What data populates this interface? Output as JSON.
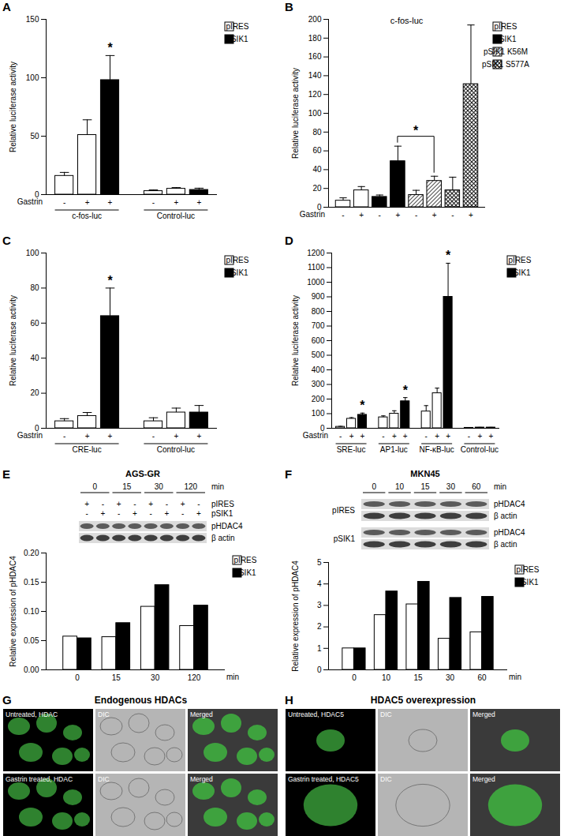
{
  "chart_data": [
    {
      "panel": "A",
      "type": "bar",
      "ylabel": "Relative luciferase activity",
      "x_row_label": "Gastrin",
      "categories": [
        "-",
        "+",
        "+",
        "-",
        "+",
        "+"
      ],
      "groups": [
        "c-fos-luc",
        "Control-luc"
      ],
      "group_of": [
        0,
        0,
        0,
        1,
        1,
        1
      ],
      "series": [
        {
          "name": "pIRES",
          "color": "#ffffff",
          "values": [
            16,
            51,
            null,
            3,
            5,
            null
          ],
          "errors": [
            3,
            13,
            null,
            1,
            1,
            null
          ]
        },
        {
          "name": "pSIK1",
          "color": "#000000",
          "values": [
            null,
            null,
            98,
            null,
            null,
            4
          ],
          "errors": [
            null,
            null,
            21,
            null,
            null,
            1.5
          ]
        }
      ],
      "ylim": [
        0,
        150
      ],
      "yticks": [
        0,
        50,
        100,
        150
      ],
      "annotations": [
        {
          "text": "*",
          "category": 2
        }
      ],
      "legend": "right"
    },
    {
      "panel": "B",
      "type": "bar",
      "title": "c-fos-luc",
      "ylabel": "Relative luciferase activity",
      "x_row_label": "Gastrin",
      "categories": [
        "-",
        "+",
        "-",
        "+",
        "-",
        "+",
        "-",
        "+"
      ],
      "series": [
        {
          "name": "pIRES",
          "color": "#ffffff",
          "values": [
            7,
            18,
            null,
            null,
            null,
            null,
            null,
            null
          ],
          "errors": [
            3,
            4,
            null,
            null,
            null,
            null,
            null,
            null
          ]
        },
        {
          "name": "pSIK1",
          "color": "#000000",
          "values": [
            null,
            null,
            11,
            49,
            null,
            null,
            null,
            null
          ],
          "errors": [
            null,
            null,
            2,
            16,
            null,
            null,
            null,
            null
          ]
        },
        {
          "name": "pSIK1 K56M",
          "color": "#555555",
          "values": [
            null,
            null,
            null,
            null,
            13,
            28,
            null,
            null
          ],
          "errors": [
            null,
            null,
            null,
            null,
            5,
            5,
            null,
            null
          ]
        },
        {
          "name": "pSIK1 S577A",
          "color": "#222222",
          "values": [
            null,
            null,
            null,
            null,
            null,
            null,
            18,
            131
          ],
          "errors": [
            null,
            null,
            null,
            null,
            null,
            null,
            14,
            63
          ]
        }
      ],
      "ylim": [
        0,
        200
      ],
      "yticks": [
        0,
        20,
        40,
        60,
        80,
        100,
        120,
        140,
        160,
        180,
        200
      ],
      "brackets": [
        {
          "text": "*",
          "from": 3,
          "to": 5
        }
      ],
      "legend": "right"
    },
    {
      "panel": "C",
      "type": "bar",
      "ylabel": "Relative luciferase activity",
      "x_row_label": "Gastrin",
      "categories": [
        "-",
        "+",
        "+",
        "-",
        "+",
        "+"
      ],
      "groups": [
        "CRE-luc",
        "Control-luc"
      ],
      "group_of": [
        0,
        0,
        0,
        1,
        1,
        1
      ],
      "series": [
        {
          "name": "pIRES",
          "color": "#ffffff",
          "values": [
            4,
            7,
            null,
            4,
            9,
            null
          ],
          "errors": [
            1.5,
            2,
            null,
            2,
            2.5,
            null
          ]
        },
        {
          "name": "pSIK1",
          "color": "#000000",
          "values": [
            null,
            null,
            64,
            null,
            null,
            9
          ],
          "errors": [
            null,
            null,
            16,
            null,
            null,
            4
          ]
        }
      ],
      "ylim": [
        0,
        100
      ],
      "yticks": [
        0,
        20,
        40,
        60,
        80,
        100
      ],
      "annotations": [
        {
          "text": "*",
          "category": 2
        }
      ],
      "legend": "right"
    },
    {
      "panel": "D",
      "type": "bar",
      "ylabel": "Relative luciferase activity",
      "x_row_label": "Gastrin",
      "categories": [
        "-",
        "+",
        "+",
        "-",
        "+",
        "+",
        "-",
        "+",
        "+",
        "-",
        "+",
        "+"
      ],
      "groups": [
        "SRE-luc",
        "AP1-luc",
        "NF-κB-luc",
        "Control-luc"
      ],
      "group_of": [
        0,
        0,
        0,
        1,
        1,
        1,
        2,
        2,
        2,
        3,
        3,
        3
      ],
      "series": [
        {
          "name": "pIRES",
          "color": "#ffffff",
          "values": [
            10,
            65,
            null,
            75,
            100,
            null,
            115,
            240,
            null,
            3,
            5,
            null
          ],
          "errors": [
            3,
            8,
            null,
            10,
            20,
            null,
            40,
            35,
            null,
            1,
            1,
            null
          ]
        },
        {
          "name": "pSIK1",
          "color": "#000000",
          "values": [
            null,
            null,
            92,
            null,
            null,
            185,
            null,
            null,
            900,
            null,
            null,
            5
          ],
          "errors": [
            null,
            null,
            12,
            null,
            null,
            25,
            null,
            null,
            230,
            null,
            null,
            1
          ]
        }
      ],
      "ylim": [
        0,
        1200
      ],
      "yticks": [
        0,
        100,
        200,
        300,
        400,
        500,
        600,
        700,
        800,
        900,
        1000,
        1100,
        1200
      ],
      "annotations": [
        {
          "text": "*",
          "category": 2
        },
        {
          "text": "*",
          "category": 5
        },
        {
          "text": "*",
          "category": 8
        }
      ],
      "legend": "right"
    },
    {
      "panel": "E",
      "type": "bar",
      "title": "AGS-GR",
      "ylabel": "Relative expression of pHDAC4",
      "xlabel": "min",
      "categories": [
        "0",
        "15",
        "30",
        "120"
      ],
      "series": [
        {
          "name": "pIRES",
          "color": "#ffffff",
          "values": [
            0.057,
            0.056,
            0.108,
            0.075
          ]
        },
        {
          "name": "pSIK1",
          "color": "#000000",
          "values": [
            0.054,
            0.08,
            0.145,
            0.11
          ]
        }
      ],
      "ylim": [
        0,
        0.2
      ],
      "yticks": [
        {
          "value": 0,
          "label": "0.00"
        },
        {
          "value": 0.05,
          "label": "0.05"
        },
        {
          "value": 0.1,
          "label": "0.10"
        },
        {
          "value": 0.15,
          "label": "0.15"
        },
        {
          "value": 0.2,
          "label": "0.20"
        }
      ],
      "legend": "right",
      "blot": {
        "header": [
          "0",
          "15",
          "30",
          "120"
        ],
        "unit": "min",
        "treatment_rows": [
          {
            "name": "pIRES",
            "marks": [
              "+",
              "-",
              "+",
              "-",
              "+",
              "-",
              "+",
              "-"
            ]
          },
          {
            "name": "pSIK1",
            "marks": [
              "-",
              "+",
              "-",
              "+",
              "-",
              "+",
              "-",
              "+"
            ]
          }
        ],
        "blocks": [
          {
            "bands": [
              "pHDAC4",
              "β actin"
            ]
          }
        ]
      }
    },
    {
      "panel": "F",
      "type": "bar",
      "title": "MKN45",
      "ylabel": "Relative expression of pHDAC4",
      "xlabel": "min",
      "categories": [
        "0",
        "10",
        "15",
        "30",
        "60"
      ],
      "series": [
        {
          "name": "pIRES",
          "color": "#ffffff",
          "values": [
            1,
            2.55,
            3.05,
            1.45,
            1.75
          ]
        },
        {
          "name": "pSIK1",
          "color": "#000000",
          "values": [
            1,
            3.65,
            4.1,
            3.35,
            3.4
          ]
        }
      ],
      "ylim": [
        0,
        5
      ],
      "yticks": [
        0,
        1,
        2,
        3,
        4,
        5
      ],
      "legend": "right",
      "blot": {
        "header": [
          "0",
          "10",
          "15",
          "30",
          "60"
        ],
        "unit": "min",
        "blocks": [
          {
            "name": "pIRES",
            "bands": [
              "pHDAC4",
              "β actin"
            ]
          },
          {
            "name": "pSIK1",
            "bands": [
              "pHDAC4",
              "β actin"
            ]
          }
        ]
      }
    }
  ],
  "images": [
    {
      "panel": "G",
      "title": "Endogenous HDACs",
      "rows": [
        [
          "Untreated, HDAC",
          "DIC",
          "Merged"
        ],
        [
          "Gastrin treated, HDAC",
          "DIC",
          "Merged"
        ]
      ]
    },
    {
      "panel": "H",
      "title": "HDAC5 overexpression",
      "rows": [
        [
          "Untreated, HDAC5",
          "DIC",
          "Merged"
        ],
        [
          "Gastrin treated, HDAC5",
          "DIC",
          "Merged"
        ]
      ]
    }
  ]
}
